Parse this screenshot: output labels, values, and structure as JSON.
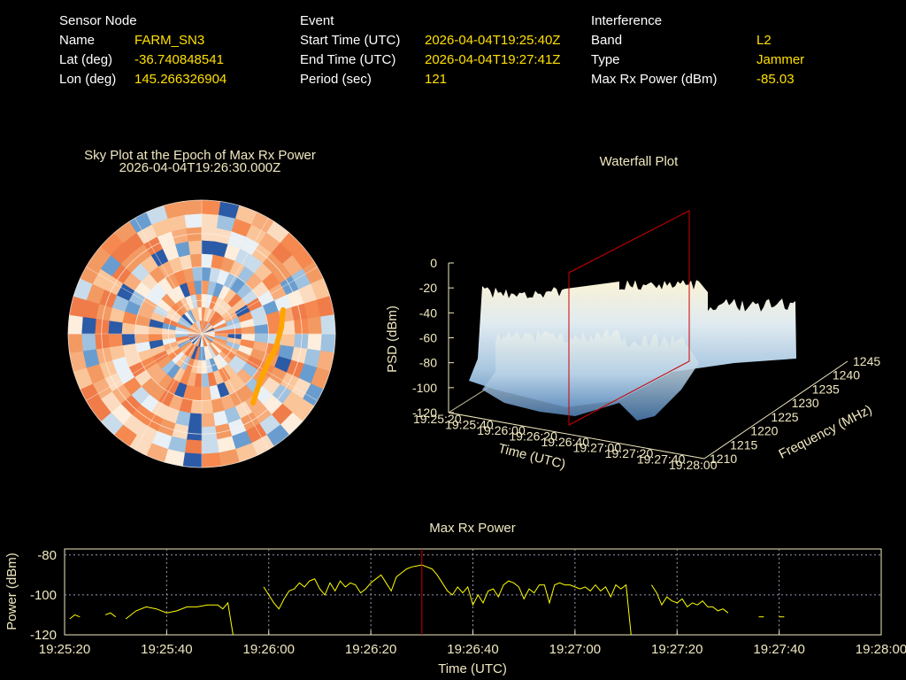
{
  "info": {
    "sensor": {
      "heading": "Sensor Node",
      "rows": [
        {
          "label": "Name",
          "value": "FARM_SN3"
        },
        {
          "label": "Lat (deg)",
          "value": "-36.740848541"
        },
        {
          "label": "Lon (deg)",
          "value": "145.266326904"
        }
      ]
    },
    "event": {
      "heading": "Event",
      "rows": [
        {
          "label": "Start Time (UTC)",
          "value": "2026-04-04T19:25:40Z"
        },
        {
          "label": "End Time (UTC)",
          "value": "2026-04-04T19:27:41Z"
        },
        {
          "label": "Period (sec)",
          "value": "121"
        }
      ]
    },
    "interference": {
      "heading": "Interference",
      "rows": [
        {
          "label": "Band",
          "value": "L2"
        },
        {
          "label": "Type",
          "value": "Jammer"
        },
        {
          "label": "Max Rx Power (dBm)",
          "value": "-85.03"
        }
      ]
    }
  },
  "colors": {
    "value_text": "#ffe000",
    "title_text": "#f0e8c0",
    "marker_line": "#cc0000",
    "power_line": "#ffff00",
    "sky_track": "#ffa500"
  },
  "chart_data": [
    {
      "type": "heatmap",
      "title": "Sky Plot at the Epoch of Max Rx Power",
      "subtitle": "2026-04-04T19:26:30.000Z",
      "projection": "polar",
      "rings": 4,
      "spokes": 12,
      "track_color": "orange"
    },
    {
      "type": "area",
      "title": "Waterfall Plot",
      "xlabel": "Time (UTC)",
      "ylabel": "Frequency (MHz)",
      "zlabel": "PSD (dBm)",
      "x_ticks": [
        "19:25:20",
        "19:25:40",
        "19:26:00",
        "19:26:20",
        "19:26:40",
        "19:27:00",
        "19:27:20",
        "19:27:40",
        "19:28:00"
      ],
      "y_ticks": [
        "1210",
        "1215",
        "1220",
        "1225",
        "1230",
        "1235",
        "1240",
        "1245"
      ],
      "z_ticks": [
        "0",
        "-20",
        "-40",
        "-60",
        "-80",
        "-100",
        "-120"
      ],
      "zlim": [
        -120,
        0
      ],
      "surface_level_dBm": -30,
      "marker_time": "19:26:30"
    },
    {
      "type": "line",
      "title": "Max Rx Power",
      "xlabel": "Time (UTC)",
      "ylabel": "Power (dBm)",
      "x_ticks": [
        "19:25:20",
        "19:25:40",
        "19:26:00",
        "19:26:20",
        "19:26:40",
        "19:27:00",
        "19:27:20",
        "19:27:40",
        "19:28:00"
      ],
      "y_ticks": [
        "-80",
        "-100",
        "-120"
      ],
      "xlim_sec": [
        0,
        160
      ],
      "ylim": [
        -120,
        -77
      ],
      "grid": true,
      "marker_x_sec": 70,
      "series": [
        {
          "segments": [
            [
              [
                1,
                -112
              ],
              [
                2,
                -110
              ],
              [
                3,
                -111
              ]
            ],
            [
              [
                8,
                -110
              ],
              [
                9,
                -109
              ],
              [
                10,
                -111
              ]
            ],
            [
              [
                12,
                -112
              ],
              [
                14,
                -108
              ],
              [
                16,
                -106
              ],
              [
                18,
                -107
              ],
              [
                20,
                -109
              ],
              [
                22,
                -108
              ],
              [
                24,
                -106
              ],
              [
                26,
                -106
              ],
              [
                28,
                -105
              ],
              [
                30,
                -105
              ],
              [
                31,
                -107
              ],
              [
                32,
                -104
              ],
              [
                33,
                -120
              ]
            ],
            [
              [
                39,
                -96
              ],
              [
                40,
                -100
              ],
              [
                41,
                -104
              ],
              [
                42,
                -107
              ],
              [
                43,
                -102
              ],
              [
                44,
                -98
              ],
              [
                45,
                -97
              ],
              [
                46,
                -94
              ],
              [
                47,
                -96
              ],
              [
                48,
                -93
              ],
              [
                49,
                -92
              ],
              [
                50,
                -97
              ],
              [
                51,
                -100
              ],
              [
                52,
                -94
              ],
              [
                53,
                -98
              ],
              [
                54,
                -93
              ],
              [
                55,
                -96
              ],
              [
                56,
                -94
              ],
              [
                57,
                -95
              ],
              [
                58,
                -99
              ],
              [
                59,
                -97
              ],
              [
                60,
                -94
              ],
              [
                61,
                -92
              ],
              [
                62,
                -90
              ],
              [
                63,
                -94
              ],
              [
                64,
                -98
              ],
              [
                65,
                -91
              ],
              [
                66,
                -89
              ],
              [
                67,
                -87
              ],
              [
                68,
                -86
              ],
              [
                69,
                -85.5
              ],
              [
                70,
                -85
              ],
              [
                71,
                -86
              ],
              [
                72,
                -87
              ],
              [
                73,
                -90
              ],
              [
                74,
                -94
              ],
              [
                75,
                -98
              ],
              [
                76,
                -100
              ],
              [
                77,
                -96
              ],
              [
                78,
                -99
              ],
              [
                79,
                -96
              ],
              [
                80,
                -105
              ],
              [
                81,
                -100
              ],
              [
                82,
                -104
              ],
              [
                83,
                -98
              ],
              [
                84,
                -97
              ],
              [
                85,
                -101
              ],
              [
                86,
                -95
              ],
              [
                87,
                -93
              ],
              [
                88,
                -94
              ],
              [
                89,
                -96
              ],
              [
                90,
                -102
              ],
              [
                91,
                -97
              ],
              [
                92,
                -99
              ],
              [
                93,
                -95
              ],
              [
                94,
                -95
              ],
              [
                95,
                -104
              ],
              [
                96,
                -95
              ],
              [
                97,
                -94
              ],
              [
                98,
                -95
              ],
              [
                99,
                -95
              ],
              [
                100,
                -96
              ],
              [
                101,
                -97
              ],
              [
                102,
                -96
              ],
              [
                103,
                -98
              ],
              [
                104,
                -95
              ],
              [
                105,
                -98
              ],
              [
                106,
                -96
              ],
              [
                107,
                -101
              ],
              [
                108,
                -95
              ],
              [
                109,
                -97
              ],
              [
                110,
                -95
              ],
              [
                111,
                -120
              ]
            ],
            [
              [
                115,
                -95
              ],
              [
                116,
                -99
              ],
              [
                117,
                -105
              ],
              [
                118,
                -101
              ],
              [
                119,
                -103
              ],
              [
                120,
                -104
              ],
              [
                121,
                -102
              ],
              [
                122,
                -106
              ],
              [
                123,
                -104
              ],
              [
                124,
                -105
              ],
              [
                125,
                -103
              ],
              [
                126,
                -106
              ],
              [
                127,
                -106
              ],
              [
                128,
                -108
              ],
              [
                129,
                -107
              ],
              [
                130,
                -109
              ]
            ],
            [
              [
                136,
                -111
              ],
              [
                137,
                -111
              ]
            ],
            [
              [
                140,
                -111
              ],
              [
                141,
                -111
              ]
            ]
          ]
        }
      ]
    }
  ]
}
